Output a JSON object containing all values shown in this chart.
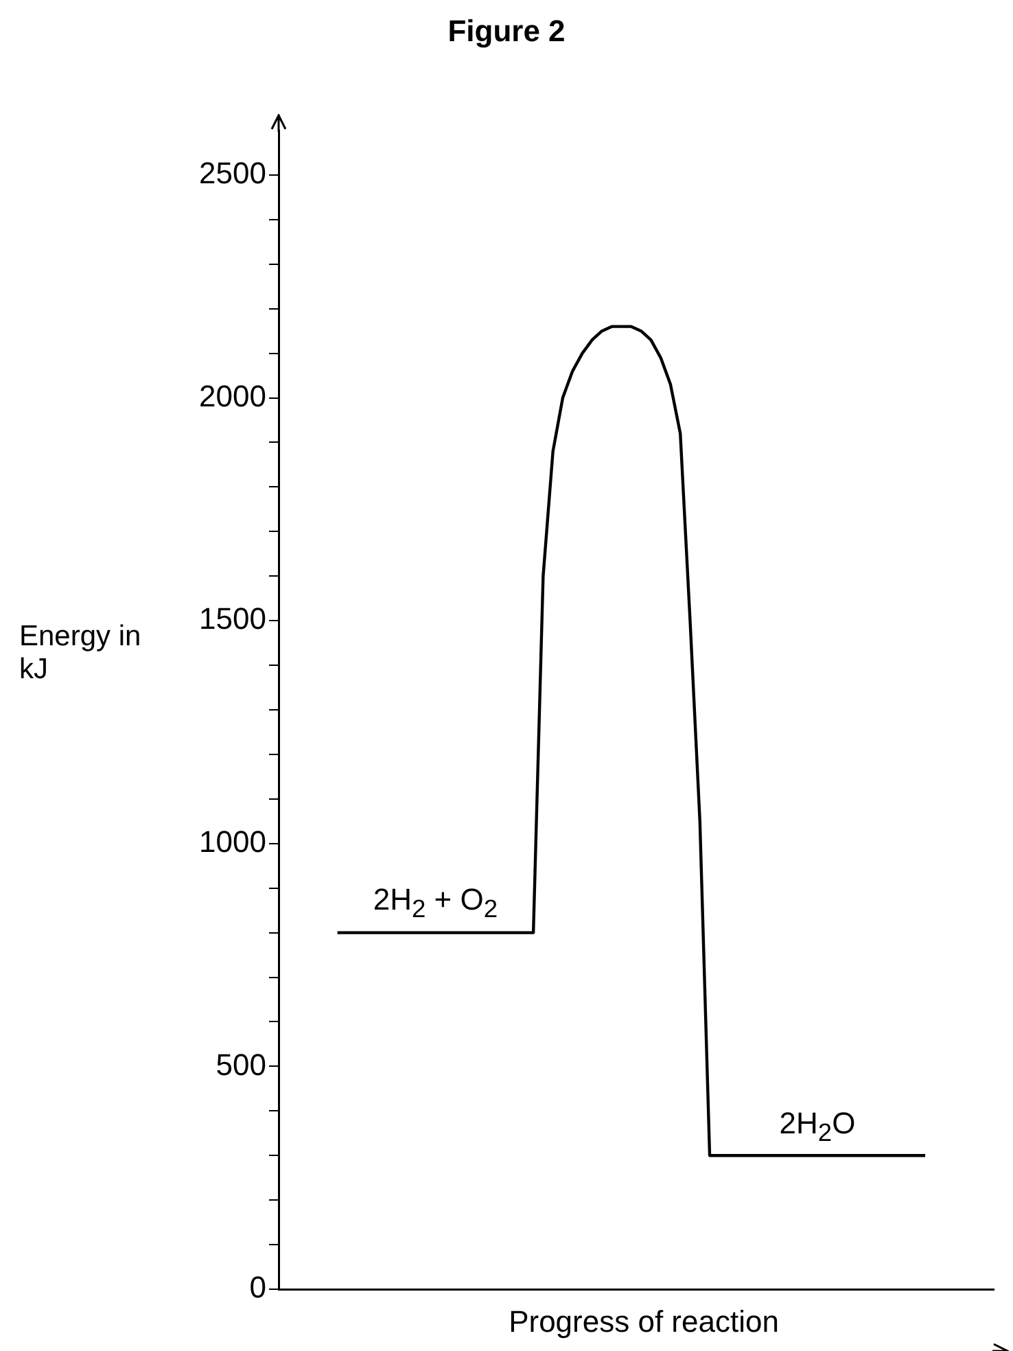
{
  "chart_data": {
    "type": "line",
    "title": "Figure 2",
    "xlabel": "Progress of reaction",
    "ylabel": "Energy in kJ",
    "categories": [
      null,
      null,
      null,
      null,
      null,
      null,
      null,
      null,
      null,
      null,
      null,
      null,
      null,
      null,
      null,
      null,
      null,
      null,
      null,
      null,
      null,
      null,
      null,
      null,
      null,
      null,
      null,
      null,
      null,
      null,
      null,
      null,
      null,
      null,
      null,
      null,
      null,
      null,
      null,
      null,
      null,
      null,
      null,
      null,
      null,
      null,
      null,
      null,
      null,
      null,
      null,
      null,
      null,
      null,
      null,
      null,
      null,
      null,
      null,
      null,
      null,
      null,
      null,
      null,
      null,
      null,
      null,
      null,
      null,
      null,
      null,
      null,
      null,
      null
    ],
    "series": [
      {
        "color": "#000000",
        "values": [
          null,
          null,
          null,
          null,
          null,
          null,
          800,
          800,
          800,
          800,
          800,
          800,
          800,
          800,
          800,
          800,
          800,
          800,
          800,
          800,
          800,
          800,
          800,
          800,
          800,
          800,
          800,
          1600,
          1880,
          2000,
          2060,
          2100,
          2130,
          2150,
          2160,
          2160,
          2160,
          2150,
          2130,
          2090,
          2030,
          1920,
          1500,
          1050,
          300,
          300,
          300,
          300,
          300,
          300,
          300,
          300,
          300,
          300,
          300,
          300,
          300,
          300,
          300,
          300,
          300,
          300,
          300,
          300,
          300,
          300,
          300,
          null,
          null,
          null,
          null,
          null,
          null,
          null
        ]
      }
    ],
    "ylim": [
      0,
      2600
    ],
    "yticks": [
      0,
      {
        "value": 100,
        "label": null
      },
      {
        "value": 200,
        "label": null
      },
      {
        "value": 300,
        "label": null
      },
      {
        "value": 400,
        "label": null
      },
      500,
      {
        "value": 600,
        "label": null
      },
      {
        "value": 700,
        "label": null
      },
      {
        "value": 800,
        "label": null
      },
      {
        "value": 900,
        "label": null
      },
      1000,
      {
        "value": 1100,
        "label": null
      },
      {
        "value": 1200,
        "label": null
      },
      {
        "value": 1300,
        "label": null
      },
      {
        "value": 1400,
        "label": null
      },
      1500,
      {
        "value": 1600,
        "label": null
      },
      {
        "value": 1700,
        "label": null
      },
      {
        "value": 1800,
        "label": null
      },
      {
        "value": 1900,
        "label": null
      },
      2000,
      {
        "value": 2100,
        "label": null
      },
      {
        "value": 2200,
        "label": null
      },
      {
        "value": 2300,
        "label": null
      },
      {
        "value": 2400,
        "label": null
      },
      2500
    ],
    "tick_labels": "y",
    "grid": false,
    "legend": false,
    "marker": "none",
    "line_style": "solid",
    "annotations": [
      {
        "text": "2H$_{2}$ + O$_{2}$",
        "y": 800
      },
      {
        "text": "2H$_{2}$O",
        "y": 300
      }
    ]
  }
}
